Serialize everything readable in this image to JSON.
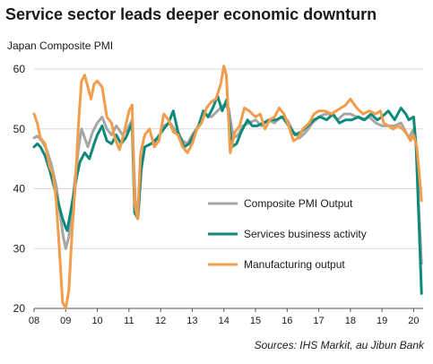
{
  "chart_data": {
    "type": "line",
    "title": "Service sector leads deeper economic downturn",
    "ylabel": "Japan Composite PMI",
    "source": "Sources: IHS Markit, au Jibun Bank",
    "ylim": [
      20,
      60
    ],
    "yticks": [
      20,
      30,
      40,
      50,
      60
    ],
    "xlim": [
      2008.0,
      2020.3
    ],
    "xticks": [
      {
        "value": 2008,
        "label": "08"
      },
      {
        "value": 2009,
        "label": "09"
      },
      {
        "value": 2010,
        "label": "10"
      },
      {
        "value": 2011,
        "label": "11"
      },
      {
        "value": 2012,
        "label": "12"
      },
      {
        "value": 2013,
        "label": "13"
      },
      {
        "value": 2014,
        "label": "14"
      },
      {
        "value": 2015,
        "label": "15"
      },
      {
        "value": 2016,
        "label": "16"
      },
      {
        "value": 2017,
        "label": "17"
      },
      {
        "value": 2018,
        "label": "18"
      },
      {
        "value": 2019,
        "label": "19"
      },
      {
        "value": 2020,
        "label": "20"
      }
    ],
    "legend_position": "right",
    "series": [
      {
        "name": "Composite PMI Output",
        "color": "#a6a6a6",
        "points": [
          [
            2008.0,
            48.5
          ],
          [
            2008.1,
            48.8
          ],
          [
            2008.25,
            48.0
          ],
          [
            2008.4,
            46.5
          ],
          [
            2008.55,
            44.0
          ],
          [
            2008.7,
            40.5
          ],
          [
            2008.82,
            36.0
          ],
          [
            2008.92,
            32.0
          ],
          [
            2009.0,
            30.0
          ],
          [
            2009.1,
            32.0
          ],
          [
            2009.2,
            37.0
          ],
          [
            2009.3,
            42.0
          ],
          [
            2009.4,
            46.5
          ],
          [
            2009.5,
            50.0
          ],
          [
            2009.6,
            48.5
          ],
          [
            2009.7,
            47.0
          ],
          [
            2009.85,
            49.5
          ],
          [
            2010.0,
            51.0
          ],
          [
            2010.15,
            52.0
          ],
          [
            2010.3,
            50.0
          ],
          [
            2010.45,
            49.0
          ],
          [
            2010.6,
            50.5
          ],
          [
            2010.8,
            49.0
          ],
          [
            2010.95,
            50.0
          ],
          [
            2011.1,
            51.5
          ],
          [
            2011.2,
            38.0
          ],
          [
            2011.3,
            36.0
          ],
          [
            2011.4,
            44.0
          ],
          [
            2011.5,
            47.0
          ],
          [
            2011.7,
            47.5
          ],
          [
            2011.9,
            48.0
          ],
          [
            2012.1,
            50.5
          ],
          [
            2012.3,
            51.0
          ],
          [
            2012.5,
            49.5
          ],
          [
            2012.7,
            48.0
          ],
          [
            2012.85,
            47.5
          ],
          [
            2013.0,
            49.0
          ],
          [
            2013.2,
            50.5
          ],
          [
            2013.4,
            52.5
          ],
          [
            2013.6,
            52.0
          ],
          [
            2013.8,
            53.0
          ],
          [
            2014.0,
            54.0
          ],
          [
            2014.15,
            53.5
          ],
          [
            2014.3,
            48.5
          ],
          [
            2014.45,
            49.0
          ],
          [
            2014.6,
            50.5
          ],
          [
            2014.8,
            51.0
          ],
          [
            2015.0,
            51.5
          ],
          [
            2015.2,
            50.5
          ],
          [
            2015.4,
            51.5
          ],
          [
            2015.6,
            51.0
          ],
          [
            2015.8,
            52.0
          ],
          [
            2016.0,
            51.5
          ],
          [
            2016.2,
            49.5
          ],
          [
            2016.4,
            48.5
          ],
          [
            2016.6,
            49.5
          ],
          [
            2016.8,
            51.0
          ],
          [
            2017.0,
            52.0
          ],
          [
            2017.2,
            52.5
          ],
          [
            2017.4,
            52.5
          ],
          [
            2017.6,
            51.5
          ],
          [
            2017.8,
            52.5
          ],
          [
            2018.0,
            52.5
          ],
          [
            2018.2,
            52.0
          ],
          [
            2018.4,
            51.5
          ],
          [
            2018.6,
            52.0
          ],
          [
            2018.8,
            51.0
          ],
          [
            2019.0,
            50.5
          ],
          [
            2019.2,
            50.5
          ],
          [
            2019.4,
            50.5
          ],
          [
            2019.6,
            51.0
          ],
          [
            2019.75,
            49.5
          ],
          [
            2019.85,
            48.5
          ],
          [
            2020.0,
            50.0
          ],
          [
            2020.08,
            47.0
          ],
          [
            2020.17,
            36.0
          ],
          [
            2020.25,
            27.5
          ]
        ]
      },
      {
        "name": "Services business activity",
        "color": "#0f8a7a",
        "points": [
          [
            2008.0,
            47.0
          ],
          [
            2008.1,
            47.5
          ],
          [
            2008.2,
            47.0
          ],
          [
            2008.35,
            45.5
          ],
          [
            2008.5,
            43.0
          ],
          [
            2008.65,
            40.0
          ],
          [
            2008.8,
            37.0
          ],
          [
            2008.9,
            35.0
          ],
          [
            2009.0,
            33.5
          ],
          [
            2009.05,
            33.0
          ],
          [
            2009.15,
            36.0
          ],
          [
            2009.25,
            39.0
          ],
          [
            2009.35,
            42.0
          ],
          [
            2009.45,
            44.5
          ],
          [
            2009.6,
            46.0
          ],
          [
            2009.75,
            45.0
          ],
          [
            2009.9,
            47.5
          ],
          [
            2010.0,
            49.0
          ],
          [
            2010.15,
            50.5
          ],
          [
            2010.3,
            48.0
          ],
          [
            2010.45,
            47.5
          ],
          [
            2010.6,
            49.0
          ],
          [
            2010.75,
            47.5
          ],
          [
            2010.9,
            48.5
          ],
          [
            2011.1,
            51.0
          ],
          [
            2011.18,
            36.0
          ],
          [
            2011.28,
            35.0
          ],
          [
            2011.38,
            43.0
          ],
          [
            2011.5,
            47.0
          ],
          [
            2011.7,
            47.5
          ],
          [
            2011.9,
            48.5
          ],
          [
            2012.1,
            50.0
          ],
          [
            2012.25,
            51.0
          ],
          [
            2012.4,
            53.0
          ],
          [
            2012.55,
            49.5
          ],
          [
            2012.75,
            47.0
          ],
          [
            2012.9,
            47.5
          ],
          [
            2013.05,
            49.0
          ],
          [
            2013.2,
            50.5
          ],
          [
            2013.35,
            53.0
          ],
          [
            2013.5,
            52.0
          ],
          [
            2013.65,
            53.5
          ],
          [
            2013.8,
            55.5
          ],
          [
            2013.95,
            53.0
          ],
          [
            2014.1,
            55.0
          ],
          [
            2014.25,
            47.0
          ],
          [
            2014.4,
            47.5
          ],
          [
            2014.55,
            49.5
          ],
          [
            2014.75,
            51.5
          ],
          [
            2014.9,
            50.5
          ],
          [
            2015.05,
            50.5
          ],
          [
            2015.25,
            51.0
          ],
          [
            2015.45,
            51.5
          ],
          [
            2015.65,
            51.5
          ],
          [
            2015.85,
            52.0
          ],
          [
            2016.05,
            50.5
          ],
          [
            2016.25,
            49.0
          ],
          [
            2016.45,
            49.5
          ],
          [
            2016.65,
            50.5
          ],
          [
            2016.85,
            51.5
          ],
          [
            2017.05,
            52.0
          ],
          [
            2017.25,
            51.5
          ],
          [
            2017.45,
            52.5
          ],
          [
            2017.65,
            51.0
          ],
          [
            2017.85,
            51.5
          ],
          [
            2018.05,
            51.5
          ],
          [
            2018.25,
            52.0
          ],
          [
            2018.45,
            51.5
          ],
          [
            2018.65,
            52.5
          ],
          [
            2018.85,
            51.5
          ],
          [
            2019.0,
            52.0
          ],
          [
            2019.2,
            53.0
          ],
          [
            2019.4,
            51.5
          ],
          [
            2019.6,
            53.5
          ],
          [
            2019.75,
            52.5
          ],
          [
            2019.85,
            51.5
          ],
          [
            2020.0,
            52.0
          ],
          [
            2020.08,
            47.0
          ],
          [
            2020.17,
            34.0
          ],
          [
            2020.25,
            22.5
          ]
        ]
      },
      {
        "name": "Manufacturing output",
        "color": "#f29d4b",
        "points": [
          [
            2008.0,
            52.5
          ],
          [
            2008.1,
            51.0
          ],
          [
            2008.2,
            48.5
          ],
          [
            2008.35,
            47.5
          ],
          [
            2008.5,
            43.5
          ],
          [
            2008.6,
            42.5
          ],
          [
            2008.7,
            38.0
          ],
          [
            2008.8,
            30.0
          ],
          [
            2008.9,
            21.0
          ],
          [
            2009.0,
            20.0
          ],
          [
            2009.1,
            23.0
          ],
          [
            2009.2,
            32.5
          ],
          [
            2009.3,
            40.5
          ],
          [
            2009.4,
            50.5
          ],
          [
            2009.5,
            58.0
          ],
          [
            2009.6,
            59.0
          ],
          [
            2009.7,
            57.0
          ],
          [
            2009.8,
            55.0
          ],
          [
            2009.9,
            57.5
          ],
          [
            2010.0,
            58.0
          ],
          [
            2010.15,
            57.0
          ],
          [
            2010.3,
            52.0
          ],
          [
            2010.45,
            51.0
          ],
          [
            2010.55,
            48.5
          ],
          [
            2010.7,
            46.5
          ],
          [
            2010.85,
            49.5
          ],
          [
            2011.0,
            53.0
          ],
          [
            2011.1,
            54.0
          ],
          [
            2011.18,
            37.5
          ],
          [
            2011.27,
            35.0
          ],
          [
            2011.37,
            46.0
          ],
          [
            2011.5,
            49.0
          ],
          [
            2011.65,
            50.0
          ],
          [
            2011.8,
            47.0
          ],
          [
            2011.95,
            48.0
          ],
          [
            2012.1,
            52.5
          ],
          [
            2012.25,
            51.5
          ],
          [
            2012.4,
            49.5
          ],
          [
            2012.55,
            49.0
          ],
          [
            2012.7,
            47.0
          ],
          [
            2012.85,
            46.0
          ],
          [
            2013.0,
            47.5
          ],
          [
            2013.15,
            50.0
          ],
          [
            2013.3,
            51.0
          ],
          [
            2013.45,
            53.5
          ],
          [
            2013.6,
            54.5
          ],
          [
            2013.75,
            55.0
          ],
          [
            2013.9,
            57.5
          ],
          [
            2014.0,
            60.5
          ],
          [
            2014.08,
            59.0
          ],
          [
            2014.2,
            46.0
          ],
          [
            2014.35,
            49.5
          ],
          [
            2014.5,
            50.5
          ],
          [
            2014.65,
            53.5
          ],
          [
            2014.8,
            53.0
          ],
          [
            2015.0,
            52.0
          ],
          [
            2015.15,
            52.5
          ],
          [
            2015.3,
            50.0
          ],
          [
            2015.45,
            51.5
          ],
          [
            2015.6,
            52.0
          ],
          [
            2015.75,
            53.5
          ],
          [
            2015.9,
            52.5
          ],
          [
            2016.05,
            50.5
          ],
          [
            2016.2,
            48.0
          ],
          [
            2016.35,
            48.5
          ],
          [
            2016.5,
            50.0
          ],
          [
            2016.7,
            51.0
          ],
          [
            2016.85,
            52.5
          ],
          [
            2017.0,
            53.0
          ],
          [
            2017.2,
            53.0
          ],
          [
            2017.4,
            52.5
          ],
          [
            2017.55,
            53.0
          ],
          [
            2017.7,
            53.5
          ],
          [
            2017.85,
            54.0
          ],
          [
            2018.0,
            55.0
          ],
          [
            2018.2,
            53.5
          ],
          [
            2018.4,
            52.5
          ],
          [
            2018.6,
            53.0
          ],
          [
            2018.8,
            52.5
          ],
          [
            2018.95,
            53.0
          ],
          [
            2019.05,
            51.0
          ],
          [
            2019.2,
            50.5
          ],
          [
            2019.35,
            50.0
          ],
          [
            2019.5,
            50.5
          ],
          [
            2019.65,
            50.0
          ],
          [
            2019.8,
            49.0
          ],
          [
            2019.9,
            48.0
          ],
          [
            2020.0,
            49.0
          ],
          [
            2020.1,
            47.0
          ],
          [
            2020.17,
            43.0
          ],
          [
            2020.25,
            38.0
          ]
        ]
      }
    ]
  }
}
